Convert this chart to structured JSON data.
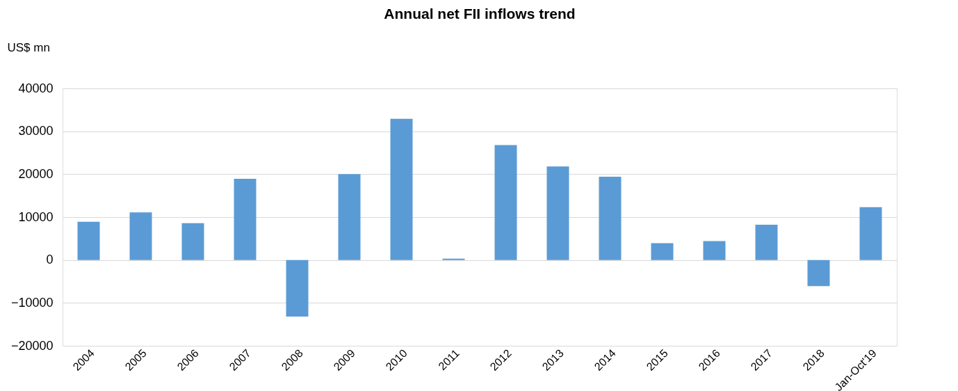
{
  "chart_data": {
    "type": "bar",
    "title": "Annual net FII inflows trend",
    "ylabel": "US$ mn",
    "categories": [
      "2004",
      "2005",
      "2006",
      "2007",
      "2008",
      "2009",
      "2010",
      "2011",
      "2012",
      "2013",
      "2014",
      "2015",
      "2016",
      "2017",
      "2018",
      "Jan-Oct'19"
    ],
    "values": [
      8900,
      11100,
      8600,
      18900,
      -13200,
      20000,
      32900,
      300,
      26800,
      21800,
      19400,
      3900,
      4400,
      8200,
      -6100,
      12300
    ],
    "color": "#5b9bd5",
    "ylim": [
      -20000,
      40000
    ],
    "yticks": [
      -20000,
      -10000,
      0,
      10000,
      20000,
      30000,
      40000
    ],
    "grid": "y"
  }
}
